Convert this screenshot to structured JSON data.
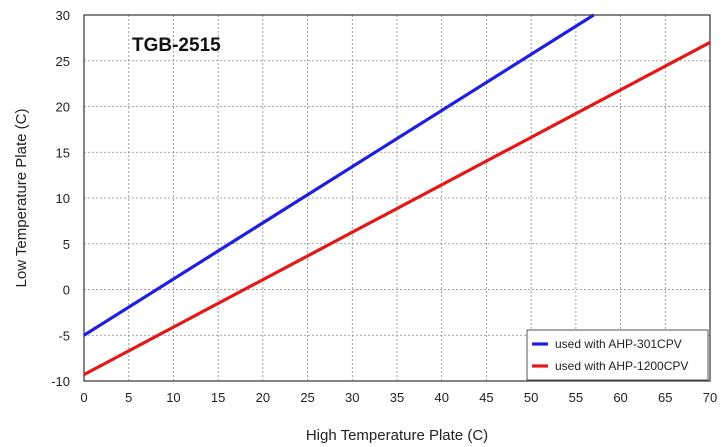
{
  "chart_data": {
    "type": "line",
    "title": "TGB-2515",
    "xlabel": "High Temperature Plate (C)",
    "ylabel": "Low Temperature Plate (C)",
    "xlim": [
      0,
      70
    ],
    "ylim": [
      -10,
      30
    ],
    "xticks": [
      0,
      5,
      10,
      15,
      20,
      25,
      30,
      35,
      40,
      45,
      50,
      55,
      60,
      65,
      70
    ],
    "yticks": [
      -10,
      -5,
      0,
      5,
      10,
      15,
      20,
      25,
      30
    ],
    "grid": true,
    "legend_position": "bottom-right",
    "series": [
      {
        "name": "used with AHP-301CPV",
        "color": "#1f1fe0",
        "x": [
          0,
          57
        ],
        "y": [
          -5,
          30
        ]
      },
      {
        "name": "used with AHP-1200CPV",
        "color": "#e31818",
        "x": [
          0,
          70
        ],
        "y": [
          -9.3,
          27
        ]
      }
    ]
  }
}
